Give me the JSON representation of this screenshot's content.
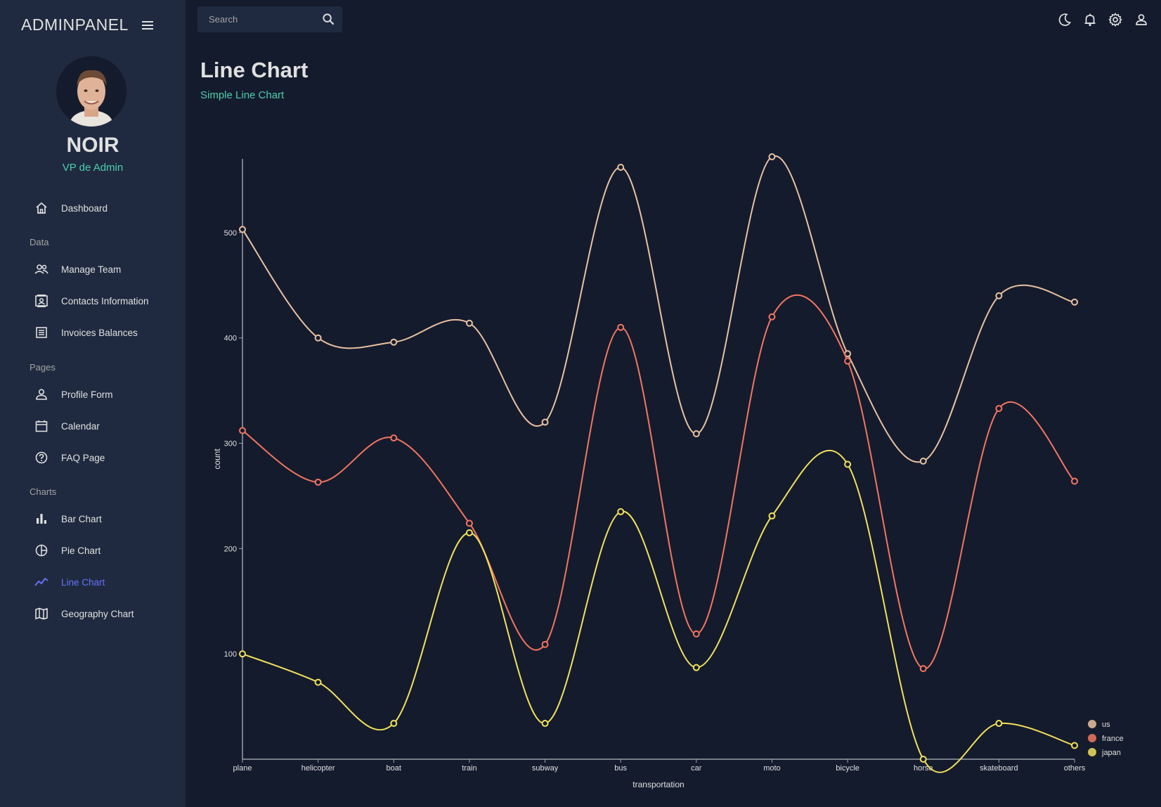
{
  "sidebar": {
    "brand": "ADMINPANEL",
    "user": {
      "name": "NOIR",
      "role": "VP de Admin"
    },
    "dashboard": "Dashboard",
    "sections": {
      "data": "Data",
      "pages": "Pages",
      "charts": "Charts"
    },
    "items": {
      "manage_team": "Manage Team",
      "contacts": "Contacts Information",
      "invoices": "Invoices Balances",
      "profile_form": "Profile Form",
      "calendar": "Calendar",
      "faq": "FAQ Page",
      "bar_chart": "Bar Chart",
      "pie_chart": "Pie Chart",
      "line_chart": "Line Chart",
      "geography_chart": "Geography Chart"
    }
  },
  "topbar": {
    "search_placeholder": "Search"
  },
  "header": {
    "title": "Line Chart",
    "subtitle": "Simple Line Chart"
  },
  "colors": {
    "accent": "#4cceac",
    "active": "#6870fa",
    "bg": "#141b2d",
    "panel": "#1f2a40"
  },
  "chart_data": {
    "type": "line",
    "xlabel": "transportation",
    "ylabel": "count",
    "ylim": [
      0,
      570
    ],
    "yticks": [
      100,
      200,
      300,
      400,
      500
    ],
    "categories": [
      "plane",
      "helicopter",
      "boat",
      "train",
      "subway",
      "bus",
      "car",
      "moto",
      "bicycle",
      "horse",
      "skateboard",
      "others"
    ],
    "series": [
      {
        "name": "us",
        "color": "#e8c1a0",
        "values": [
          503,
          400,
          396,
          414,
          320,
          562,
          309,
          572,
          385,
          283,
          440,
          434
        ]
      },
      {
        "name": "france",
        "color": "#f47560",
        "values": [
          312,
          263,
          305,
          224,
          109,
          410,
          119,
          420,
          378,
          86,
          333,
          264
        ]
      },
      {
        "name": "japan",
        "color": "#f1e15b",
        "values": [
          100,
          73,
          34,
          215,
          34,
          235,
          87,
          231,
          280,
          0,
          34,
          13
        ]
      }
    ],
    "legend": [
      "us",
      "france",
      "japan"
    ],
    "legend_position": "bottom-right"
  }
}
